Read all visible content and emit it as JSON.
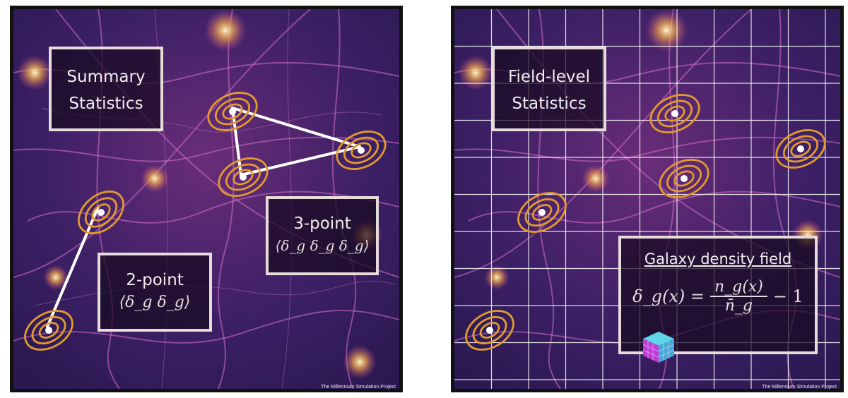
{
  "left_panel": {
    "summary_box": {
      "line1": "Summary",
      "line2": "Statistics"
    },
    "two_point": {
      "title": "2-point",
      "formula": "⟨δ_g δ_g⟩"
    },
    "three_point": {
      "title": "3-point",
      "formula": "⟨δ_g δ_g δ_g⟩"
    },
    "credit": "The Millennium Simulation Project"
  },
  "right_panel": {
    "field_box": {
      "line1": "Field-level",
      "line2": "Statistics"
    },
    "density_box": {
      "title": "Galaxy density field",
      "formula_lhs": "δ_g(x) =",
      "numerator": "n_g(x)",
      "denominator": "n̄_g",
      "formula_rhs": "− 1"
    },
    "cube_icon": "cube-icon",
    "credit": "The Millennium Simulation Project"
  },
  "colors": {
    "background": "#3a1d5c",
    "filament": "#d46bc8",
    "contour": "#e09a2e",
    "box_border": "#e7dcdc"
  }
}
